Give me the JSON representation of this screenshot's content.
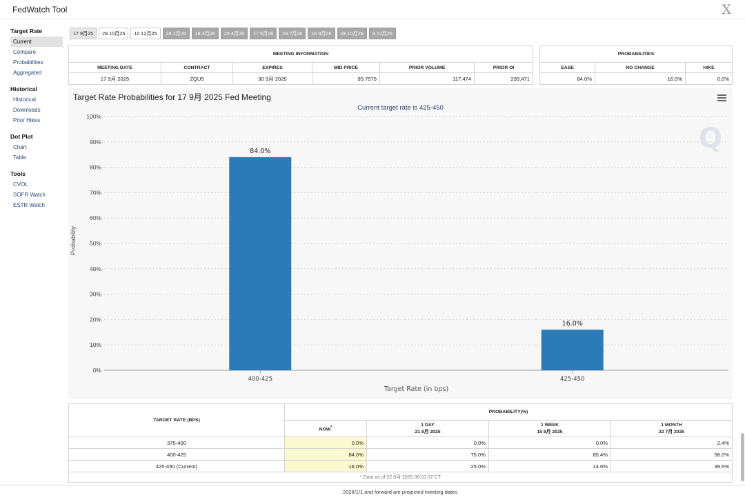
{
  "app": {
    "title": "FedWatch Tool",
    "close_glyph": "X"
  },
  "sidebar": {
    "sections": [
      {
        "heading": "Target Rate",
        "items": [
          "Current",
          "Compare",
          "Probabilities",
          "Aggregated"
        ]
      },
      {
        "heading": "Historical",
        "items": [
          "Historical",
          "Downloads",
          "Prior Hikes"
        ]
      },
      {
        "heading": "Dot Plot",
        "items": [
          "Chart",
          "Table"
        ]
      },
      {
        "heading": "Tools",
        "items": [
          "CVOL",
          "SOFR Watch",
          "ESTR Watch"
        ]
      }
    ],
    "active_item": "Current"
  },
  "tabs": [
    {
      "label": "17 9月25",
      "style": "selected"
    },
    {
      "label": "29 10月25",
      "style": "normal"
    },
    {
      "label": "10 12月25",
      "style": "normal"
    },
    {
      "label": "28 1月26",
      "style": "grey"
    },
    {
      "label": "18 3月26",
      "style": "grey"
    },
    {
      "label": "29 4月26",
      "style": "grey"
    },
    {
      "label": "17 6月26",
      "style": "grey"
    },
    {
      "label": "29 7月26",
      "style": "grey"
    },
    {
      "label": "16 9月26",
      "style": "grey"
    },
    {
      "label": "28 10月26",
      "style": "grey"
    },
    {
      "label": "9 12月26",
      "style": "grey"
    }
  ],
  "meeting_info": {
    "title": "MEETING INFORMATION",
    "headers": [
      "MEETING DATE",
      "CONTRACT",
      "EXPIRES",
      "MID PRICE",
      "PRIOR VOLUME",
      "PRIOR OI"
    ],
    "row": [
      "17 9月 2025",
      "ZQU5",
      "30 9月 2025",
      "95.7575",
      "117,474",
      "299,471"
    ]
  },
  "probabilities": {
    "title": "PROBABILITIES",
    "headers": [
      "EASE",
      "NO CHANGE",
      "HIKE"
    ],
    "row": [
      "84.0%",
      "16.0%",
      "0.0%"
    ]
  },
  "chart_data": {
    "type": "bar",
    "title": "Target Rate Probabilities for 17 9月 2025 Fed Meeting",
    "subtitle": "Current target rate is 425-450",
    "xlabel": "Target Rate (in bps)",
    "ylabel": "Probability",
    "categories": [
      "400-425",
      "425-450"
    ],
    "values": [
      84.0,
      16.0
    ],
    "data_labels": [
      "84.0%",
      "16.0%"
    ],
    "ylim": [
      0,
      100
    ],
    "yticks": [
      "0%",
      "10%",
      "20%",
      "30%",
      "40%",
      "50%",
      "60%",
      "70%",
      "80%",
      "90%",
      "100%"
    ],
    "grid": true,
    "bar_color": "#2b7bb9"
  },
  "prob_table": {
    "row_header": "TARGET RATE (BPS)",
    "group_header": "PROBABILITY(%)",
    "columns": [
      {
        "label": "NOW",
        "sup": "*",
        "date": ""
      },
      {
        "label": "1 DAY",
        "date": "21 8月 2025"
      },
      {
        "label": "1 WEEK",
        "date": "15 8月 2025"
      },
      {
        "label": "1 MONTH",
        "date": "22 7月 2025"
      }
    ],
    "rows": [
      {
        "rate": "375-400",
        "values": [
          "0.0%",
          "0.0%",
          "0.0%",
          "2.4%"
        ]
      },
      {
        "rate": "400-425",
        "values": [
          "84.0%",
          "75.0%",
          "85.4%",
          "58.0%"
        ]
      },
      {
        "rate": "425-450 (Current)",
        "values": [
          "16.0%",
          "25.0%",
          "14.6%",
          "39.6%"
        ]
      }
    ],
    "note": "* Data as of 22 8月 2025 06:01:37 CT"
  },
  "footer_note": "2026/1/1 and forward are projected meeting dates",
  "watermark": "Q",
  "icons": {
    "menu": "hamburger-menu-icon",
    "close": "close-icon"
  }
}
